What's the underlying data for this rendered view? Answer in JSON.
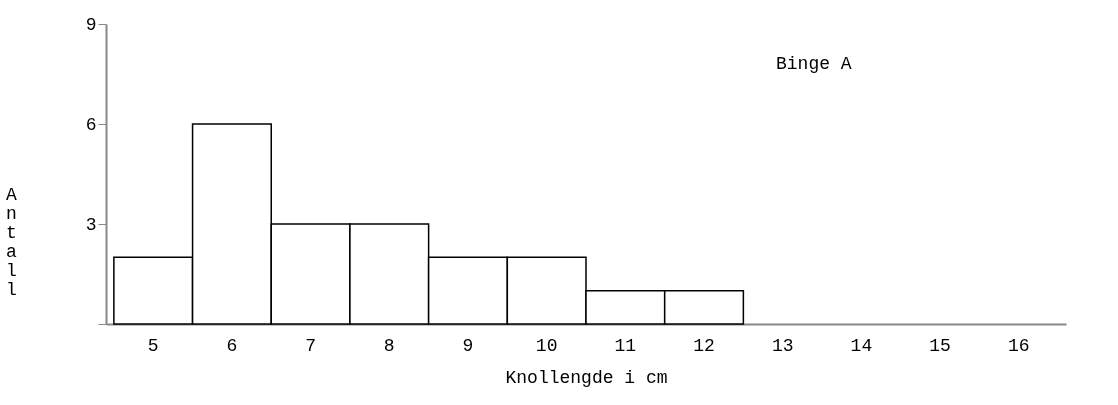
{
  "chart_data": {
    "type": "bar",
    "xlabel": "Knollengde  i  cm",
    "ylabel": "Antall",
    "categories": [
      "5",
      "6",
      "7",
      "8",
      "9",
      "10",
      "11",
      "12",
      "13",
      "14",
      "15",
      "16"
    ],
    "values": [
      2,
      6,
      3,
      3,
      2,
      2,
      1,
      1,
      null,
      null,
      null,
      null
    ],
    "color": "#ffffff",
    "ylim": [
      0,
      9
    ],
    "yticks": [
      {
        "value": 0,
        "label": null
      },
      3,
      6,
      9
    ],
    "grid": false,
    "annotations": [
      "Binge A"
    ]
  }
}
